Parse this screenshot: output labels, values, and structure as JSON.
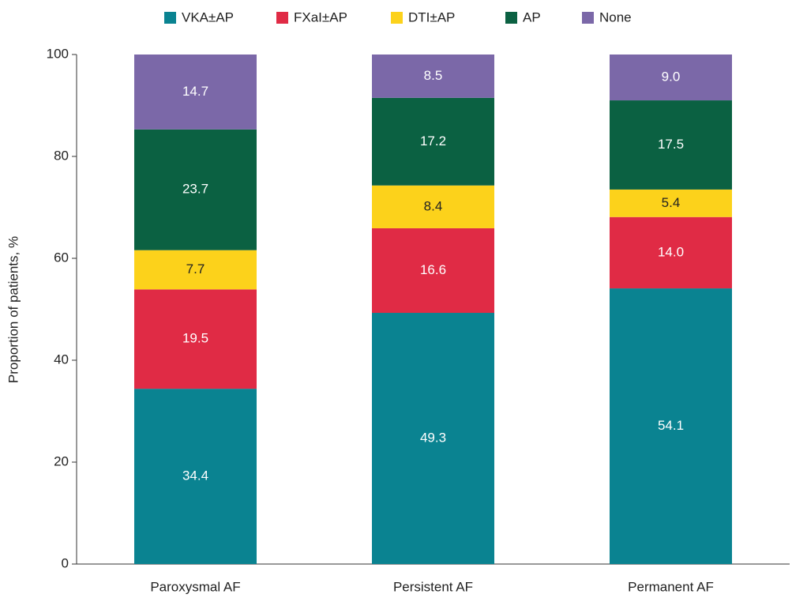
{
  "chart_data": {
    "type": "stacked_bar",
    "y_label": "Proportion of patients, %",
    "categories": [
      "Paroxysmal AF",
      "Persistent AF",
      "Permanent AF"
    ],
    "ylim": [
      0,
      100
    ],
    "yticks": [
      0,
      20,
      40,
      60,
      80,
      100
    ],
    "series": [
      {
        "name": "VKA±AP",
        "color": "#0a8391",
        "values": [
          34.4,
          49.3,
          54.1
        ],
        "value_labels": [
          "34.4",
          "49.3",
          "54.1"
        ]
      },
      {
        "name": "FXaI±AP",
        "color": "#e02b45",
        "values": [
          19.5,
          16.6,
          14.0
        ],
        "value_labels": [
          "19.5",
          "16.6",
          "14.0"
        ]
      },
      {
        "name": "DTI±AP",
        "color": "#fcd21b",
        "values": [
          7.7,
          8.4,
          5.4
        ],
        "value_labels": [
          "7.7",
          "8.4",
          "5.4"
        ]
      },
      {
        "name": "AP",
        "color": "#0b6142",
        "values": [
          23.7,
          17.2,
          17.5
        ],
        "value_labels": [
          "23.7",
          "17.2",
          "17.5"
        ]
      },
      {
        "name": "None",
        "color": "#7b68a8",
        "values": [
          14.7,
          8.5,
          9.0
        ],
        "value_labels": [
          "14.7",
          "8.5",
          "9.0"
        ]
      }
    ]
  }
}
